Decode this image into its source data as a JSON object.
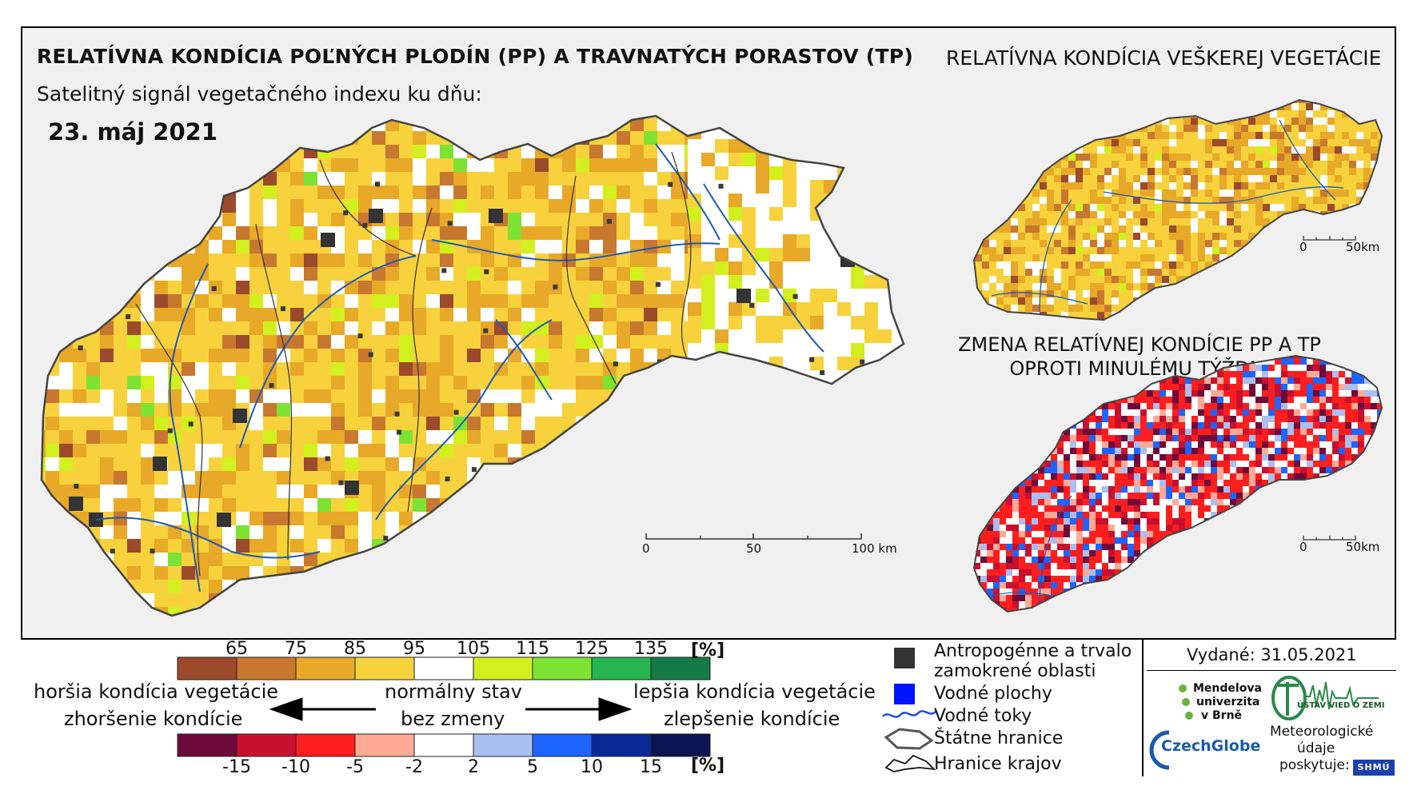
{
  "titles": {
    "main": "RELATÍVNA KONDÍCIA POĽNÝCH PLODÍN (PP) A TRAVNATÝCH PORASTOV (TP)",
    "right": "RELATÍVNA KONDÍCIA VEŠKEREJ VEGETÁCIE",
    "subtitle": "Satelitný signál vegetačného indexu ku dňu:",
    "date": "23. máj 2021",
    "change_line1": "ZMENA RELATÍVNEJ KONDÍCIE PP A TP",
    "change_line2": "OPROTI MINULÉMU TÝŽDNI"
  },
  "main_scalebar": {
    "labels": [
      "0",
      "50",
      "100 km"
    ]
  },
  "small_scalebar": {
    "labels": [
      "0",
      "50km"
    ]
  },
  "condition_legend": {
    "unit": "[%]",
    "breaks": [
      "65",
      "75",
      "85",
      "95",
      "105",
      "115",
      "125",
      "135"
    ],
    "colors": [
      "#9c4a2c",
      "#c8782e",
      "#e8a828",
      "#f7d23c",
      "#ffffff",
      "#d2f01e",
      "#7ee232",
      "#26b450",
      "#167a46"
    ]
  },
  "change_legend": {
    "unit": "[%]",
    "breaks": [
      "-15",
      "-10",
      "-5",
      "-2",
      "2",
      "5",
      "10",
      "15"
    ],
    "colors": [
      "#6e0a3a",
      "#c8102e",
      "#ff1e1e",
      "#ffaa96",
      "#ffffff",
      "#aabef0",
      "#1e64ff",
      "#0a2896",
      "#0a1450"
    ]
  },
  "legend_text": {
    "worse": "horšia kondícia vegetácie",
    "worsening": "zhoršenie kondície",
    "normal": "normálny stav",
    "no_change": "bez zmeny",
    "better": "lepšia kondícia vegetácie",
    "improving": "zlepšenie kondície"
  },
  "symbols": {
    "anthropogenic_line1": "Antropogénne a trvalo",
    "anthropogenic_line2": "zamokrené oblasti",
    "water_bodies": "Vodné plochy",
    "rivers": "Vodné toky",
    "borders": "Štátne hranice",
    "regions": "Hranice krajov"
  },
  "issued": "Vydané: 31.05.2021",
  "logos": {
    "mendel_line1": "Mendelova",
    "mendel_line2": "univerzita",
    "mendel_line3": "v Brně",
    "czechglobe": "CzechGlobe",
    "uvz": "ÚSTAV VIED O ZEMI",
    "met_line1": "Meteorologické",
    "met_line2": "údaje",
    "met_line3": "poskytuje:",
    "shmu": "SHMÚ"
  }
}
